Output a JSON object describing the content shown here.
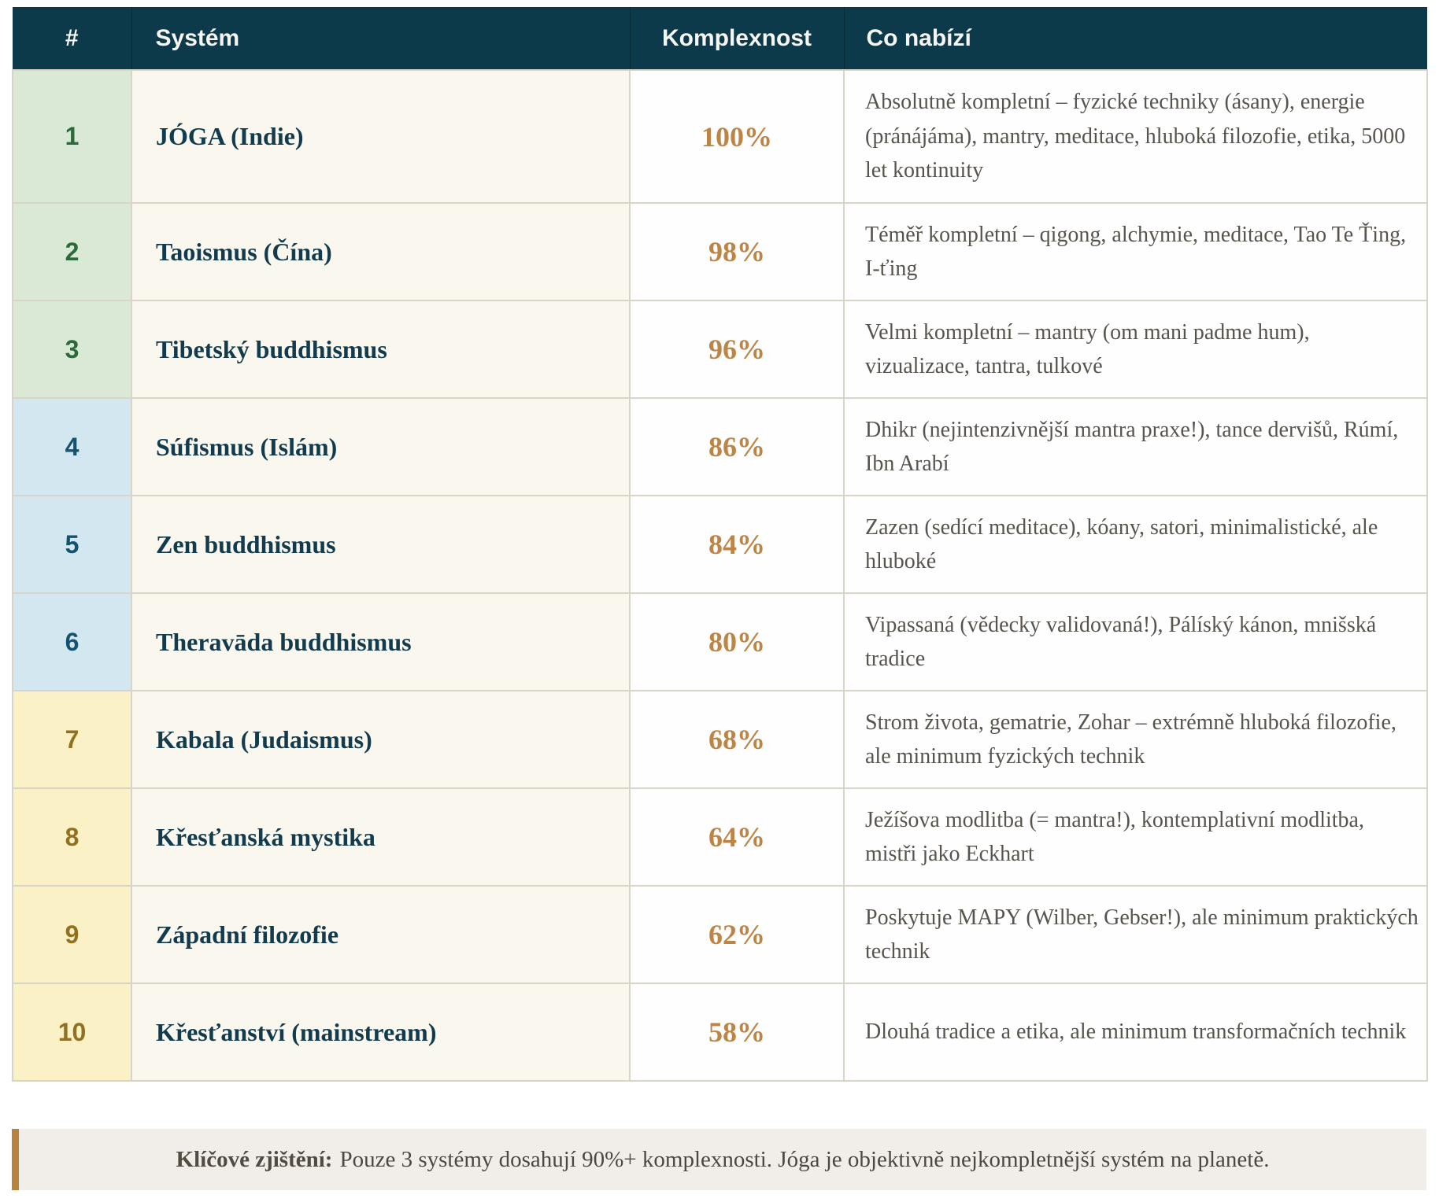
{
  "table": {
    "headers": {
      "rank": "#",
      "system": "Systém",
      "complexity": "Komplexnost",
      "offers": "Co nabízí"
    },
    "rows": [
      {
        "rank": "1",
        "tier": "green",
        "system": "JÓGA (Indie)",
        "complexity": "100%",
        "offers": "Absolutně kompletní – fyzické techniky (ásany), energie (pránájáma), mantry, meditace, hluboká filozofie, etika, 5000 let kontinuity"
      },
      {
        "rank": "2",
        "tier": "green",
        "system": "Taoismus (Čína)",
        "complexity": "98%",
        "offers": "Téměř kompletní – qigong, alchymie, meditace, Tao Te Ťing, I-ťing"
      },
      {
        "rank": "3",
        "tier": "green",
        "system": "Tibetský buddhismus",
        "complexity": "96%",
        "offers": "Velmi kompletní – mantry (om mani padme hum), vizualizace, tantra, tulkové"
      },
      {
        "rank": "4",
        "tier": "blue",
        "system": "Súfismus (Islám)",
        "complexity": "86%",
        "offers": "Dhikr (nejintenzivnější mantra praxe!), tance dervišů, Rúmí, Ibn Arabí"
      },
      {
        "rank": "5",
        "tier": "blue",
        "system": "Zen buddhismus",
        "complexity": "84%",
        "offers": "Zazen (sedící meditace), kóany, satori, minimalistické, ale hluboké"
      },
      {
        "rank": "6",
        "tier": "blue",
        "system": "Theravāda buddhismus",
        "complexity": "80%",
        "offers": "Vipassaná (vědecky validovaná!), Pálíský kánon, mnišská tradice"
      },
      {
        "rank": "7",
        "tier": "yellow",
        "system": "Kabala (Judaismus)",
        "complexity": "68%",
        "offers": "Strom života, gematrie, Zohar – extrémně hluboká filozofie, ale minimum fyzických technik"
      },
      {
        "rank": "8",
        "tier": "yellow",
        "system": "Křesťanská mystika",
        "complexity": "64%",
        "offers": "Ježíšova modlitba (= mantra!), kontemplativní modlitba, mistři jako Eckhart"
      },
      {
        "rank": "9",
        "tier": "yellow",
        "system": "Západní filozofie",
        "complexity": "62%",
        "offers": "Poskytuje MAPY (Wilber, Gebser!), ale minimum praktických technik"
      },
      {
        "rank": "10",
        "tier": "yellow",
        "system": "Křesťanství (mainstream)",
        "complexity": "58%",
        "offers": "Dlouhá tradice a etika, ale minimum transformačních technik"
      }
    ]
  },
  "note": {
    "label": "Klíčové zjištění:",
    "text": "Pouze 3 systémy dosahují 90%+ komplexnosti. Jóga je objektivně nejkompletnější systém na planetě."
  },
  "colors": {
    "header_bg": "#0d3a4a",
    "tier_green_bg": "#d9e9d5",
    "tier_green_text": "#2b6a3a",
    "tier_blue_bg": "#d3e7f0",
    "tier_blue_text": "#14536f",
    "tier_yellow_bg": "#fbf1c7",
    "tier_yellow_text": "#91701f",
    "system_column_bg": "#faf7ef",
    "system_text": "#123c4e",
    "percent_text": "#bd8545",
    "offers_text": "#57534d",
    "note_bg": "#f1ede8",
    "note_accent_border": "#b8823f"
  }
}
